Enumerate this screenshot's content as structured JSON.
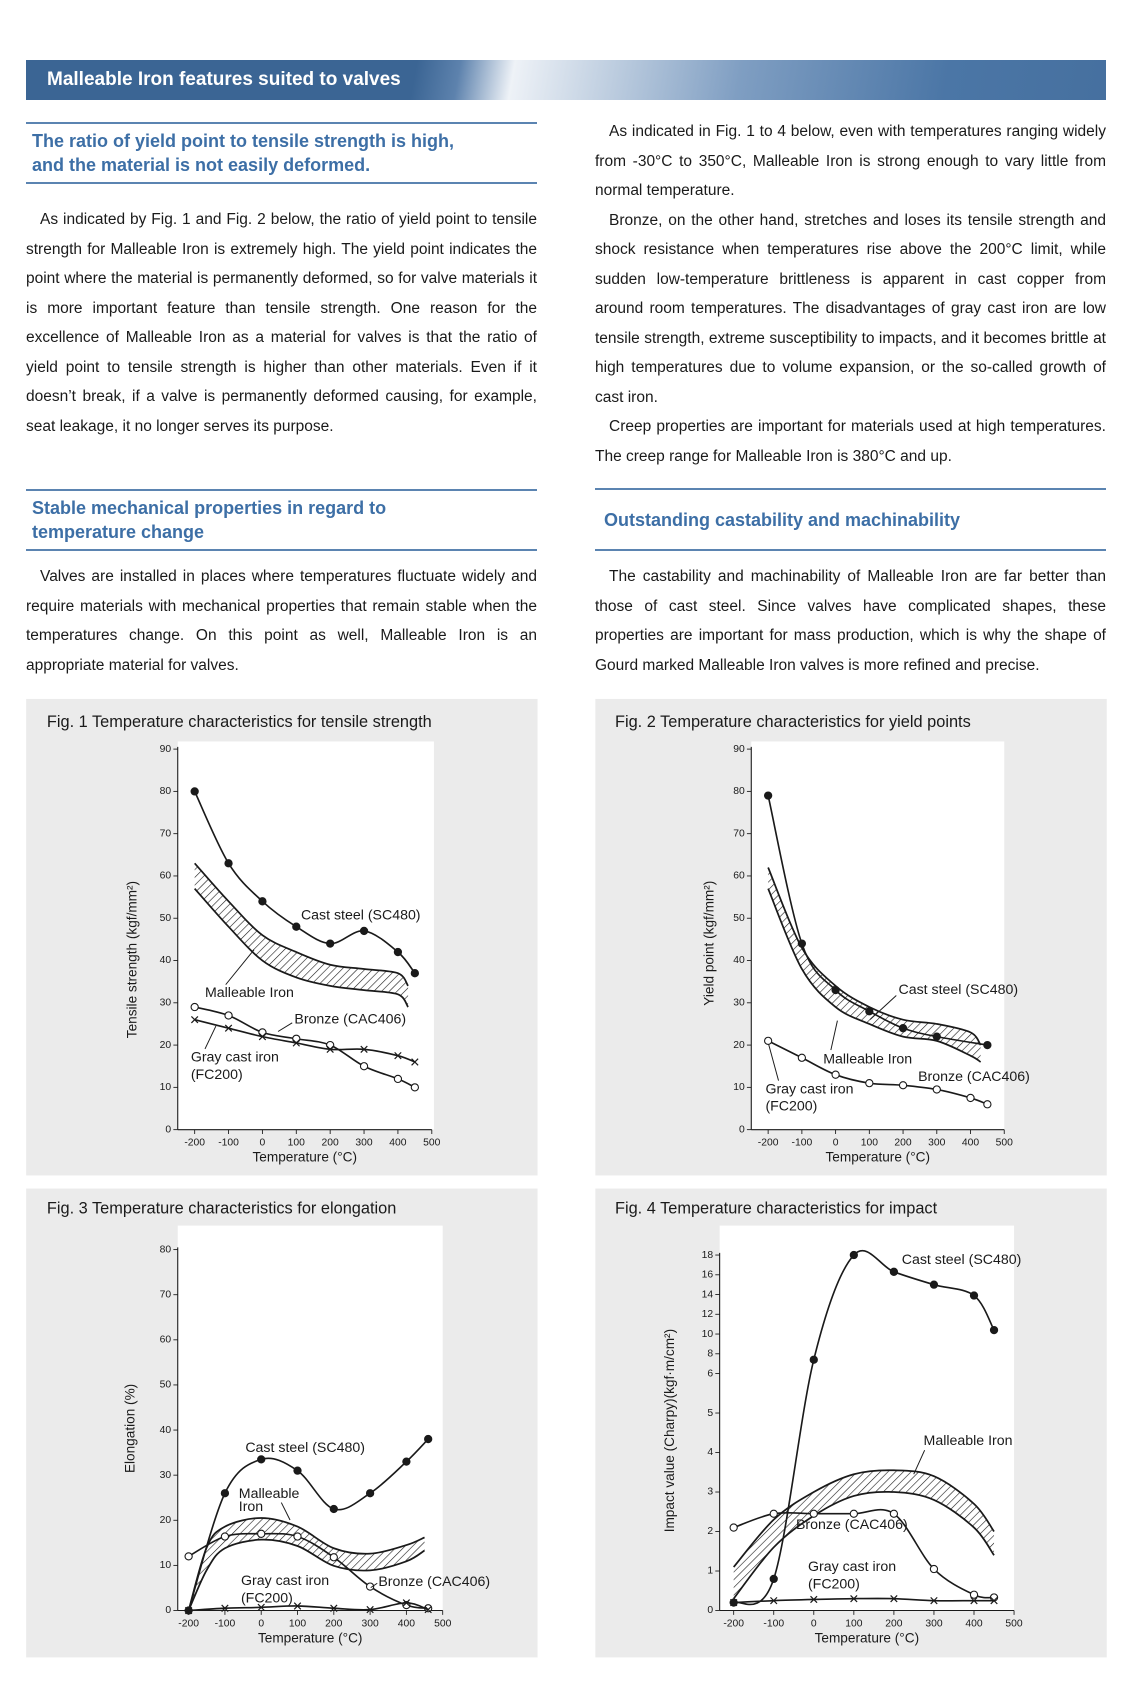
{
  "header": {
    "title": "Malleable Iron features suited to valves"
  },
  "left_column": {
    "sections": [
      {
        "heading": "The ratio of yield point to tensile strength is high, and the material is not easily deformed.",
        "paragraphs": [
          "As indicated by Fig. 1 and Fig. 2 below, the ratio of yield point to tensile strength for Malleable Iron is extremely high. The yield point indicates the point where the material is permanently deformed, so for valve materials it is more important feature than tensile strength. One reason for the excellence of Malleable Iron as a material for valves is that the ratio of yield point to tensile strength is higher than other materials. Even if it doesn’t break, if a valve is permanently deformed causing, for example, seat leakage, it no longer serves its purpose."
        ]
      },
      {
        "heading": "Stable mechanical properties in regard to temperature change",
        "paragraphs": [
          "Valves are installed in places where temperatures fluctuate widely and require materials with mechanical properties that remain stable when the temperatures change. On this point as well, Malleable Iron is an appropriate material for valves."
        ]
      }
    ]
  },
  "right_column": {
    "paragraphs": [
      "As indicated in Fig. 1 to 4 below, even with temperatures ranging widely from -30°C to 350°C, Malleable Iron is strong enough to vary little from normal temperature.",
      "Bronze, on the other hand, stretches and loses its tensile strength and shock resistance when temperatures rise above the 200°C limit, while sudden low-temperature brittleness is apparent in cast copper from around room temperatures. The disadvantages of gray cast iron are low tensile strength, extreme susceptibility to impacts, and it becomes brittle at high temperatures due to volume expansion, or the so-called growth of cast iron.",
      "Creep properties are important for materials used at high temperatures. The creep range for Malleable Iron is 380°C and up."
    ],
    "sections": [
      {
        "heading": "Outstanding castability and machinability",
        "paragraphs": [
          "The castability and machinability of Malleable Iron are far better than those of cast steel. Since valves have complicated shapes, these properties are important for mass production, which is why the shape of Gourd marked Malleable Iron valves is more refined and precise."
        ]
      }
    ]
  },
  "chart_data": [
    {
      "type": "line",
      "title": "Fig. 1 Temperature characteristics for tensile strength",
      "x_label": "Temperature (°C)",
      "y_label": "Tensile strength (kgf/mm²)",
      "xlim": [
        -250,
        500
      ],
      "xticks": [
        -200,
        -100,
        0,
        100,
        200,
        300,
        400,
        500
      ],
      "ylim": [
        0,
        90
      ],
      "yticks": [
        0,
        10,
        20,
        30,
        40,
        50,
        60,
        70,
        80,
        90
      ],
      "color": "#1a1a1a",
      "series": [
        {
          "name": "Cast steel (SC480)",
          "marker": "filled",
          "x": [
            -200,
            -100,
            0,
            100,
            200,
            300,
            400,
            450
          ],
          "values": [
            80,
            63,
            54,
            48,
            44,
            47,
            42,
            37
          ]
        },
        {
          "name": "Malleable Iron",
          "marker": "band",
          "x": [
            -200,
            -100,
            0,
            100,
            200,
            300,
            400,
            430
          ],
          "low": [
            57,
            48,
            40,
            36,
            34,
            33,
            32,
            29
          ],
          "high": [
            63,
            54,
            46,
            42,
            39,
            38,
            37,
            34
          ]
        },
        {
          "name": "Bronze (CAC406)",
          "marker": "open",
          "x": [
            -200,
            -100,
            0,
            100,
            200,
            300,
            400,
            450
          ],
          "values": [
            29,
            27,
            23,
            21.5,
            20,
            15,
            12,
            10
          ]
        },
        {
          "name": "Gray cast iron (FC200)",
          "marker": "cross",
          "x": [
            -200,
            -100,
            0,
            100,
            200,
            300,
            400,
            450
          ],
          "values": [
            26,
            24,
            22,
            20.5,
            19,
            19,
            17.5,
            16
          ]
        }
      ]
    },
    {
      "type": "line",
      "title": "Fig. 2 Temperature characteristics for yield points",
      "x_label": "Temperature (°C)",
      "y_label": "Yield point (kgf/mm²)",
      "xlim": [
        -250,
        500
      ],
      "xticks": [
        -200,
        -100,
        0,
        100,
        200,
        300,
        400,
        500
      ],
      "ylim": [
        0,
        90
      ],
      "yticks": [
        0,
        10,
        20,
        30,
        40,
        50,
        60,
        70,
        80,
        90
      ],
      "color": "#1a1a1a",
      "series": [
        {
          "name": "Cast steel (SC480)",
          "marker": "filled",
          "x": [
            -200,
            -100,
            0,
            100,
            200,
            300,
            450
          ],
          "values": [
            79,
            44,
            33,
            28,
            24,
            22,
            20
          ]
        },
        {
          "name": "Malleable Iron",
          "marker": "band",
          "x": [
            -200,
            -100,
            0,
            100,
            200,
            300,
            400,
            430
          ],
          "low": [
            57,
            38,
            29,
            25,
            22,
            21,
            17.5,
            16
          ],
          "high": [
            62,
            43,
            34,
            29,
            26,
            25,
            23,
            20
          ]
        },
        {
          "name": "Bronze (CAC406)",
          "marker": "open",
          "x": [
            -200,
            -100,
            0,
            100,
            200,
            300,
            400,
            450
          ],
          "values": [
            21,
            17,
            13,
            11,
            10.5,
            9.5,
            7.5,
            6
          ]
        }
      ],
      "annotations": [
        "Gray cast iron (FC200)"
      ]
    },
    {
      "type": "line",
      "title": "Fig. 3 Temperature characteristics for elongation",
      "x_label": "Temperature (°C)",
      "y_label": "Elongation (%)",
      "xlim": [
        -230,
        500
      ],
      "xticks": [
        -200,
        -100,
        0,
        100,
        200,
        300,
        400,
        500
      ],
      "ylim": [
        0,
        80
      ],
      "yticks": [
        0,
        10,
        20,
        30,
        40,
        50,
        60,
        70,
        80
      ],
      "color": "#1a1a1a",
      "series": [
        {
          "name": "Cast steel (SC480)",
          "marker": "filled",
          "x": [
            -200,
            -100,
            0,
            100,
            200,
            300,
            400,
            460
          ],
          "values": [
            0,
            26,
            33.5,
            31,
            22.5,
            26,
            33,
            38
          ]
        },
        {
          "name": "Malleable Iron",
          "marker": "band",
          "x": [
            -200,
            -150,
            -100,
            0,
            100,
            200,
            300,
            400,
            450
          ],
          "low": [
            0,
            9,
            13.8,
            15.7,
            14.3,
            9.9,
            8.9,
            10.9,
            13.3
          ],
          "high": [
            0,
            14,
            18.6,
            20.5,
            18.6,
            13.8,
            12.6,
            14.5,
            16.2
          ]
        },
        {
          "name": "Bronze (CAC406)",
          "marker": "open",
          "x": [
            -200,
            -100,
            0,
            100,
            200,
            300,
            400,
            460
          ],
          "values": [
            12,
            16.4,
            17,
            16.4,
            11.8,
            5.3,
            1.2,
            0.5
          ]
        },
        {
          "name": "Gray cast iron (FC200)",
          "marker": "cross",
          "x": [
            -200,
            -100,
            0,
            100,
            200,
            300,
            400,
            460
          ],
          "values": [
            0,
            0.5,
            0.7,
            1,
            0.5,
            0.2,
            1.7,
            0.2
          ]
        }
      ]
    },
    {
      "type": "line",
      "title": "Fig. 4 Temperature characteristics for impact",
      "x_label": "Temperature (°C)",
      "y_label": "Impact value (Charpy)(kgf·m/cm²)",
      "xlim": [
        -235,
        500
      ],
      "xticks": [
        -200,
        -100,
        0,
        100,
        200,
        300,
        400,
        500
      ],
      "ylim": [
        0,
        18
      ],
      "yticks": [
        0,
        1,
        2,
        3,
        4,
        5,
        6,
        8,
        10,
        12,
        14,
        16,
        18
      ],
      "ybreak": 6,
      "color": "#1a1a1a",
      "series": [
        {
          "name": "Cast steel (SC480)",
          "marker": "filled",
          "x": [
            -200,
            -100,
            0,
            100,
            200,
            300,
            400,
            450
          ],
          "values": [
            0.2,
            0.8,
            7.4,
            18,
            16.3,
            15,
            13.9,
            10.4
          ]
        },
        {
          "name": "Malleable Iron",
          "marker": "band",
          "x": [
            -200,
            -100,
            0,
            100,
            200,
            300,
            400,
            450
          ],
          "low": [
            0.3,
            1.6,
            2.4,
            2.9,
            3,
            2.8,
            2.1,
            1.4
          ],
          "high": [
            1.1,
            2.3,
            3,
            3.45,
            3.55,
            3.4,
            2.7,
            2
          ]
        },
        {
          "name": "Bronze (CAC406)",
          "marker": "open",
          "x": [
            -200,
            -100,
            0,
            100,
            200,
            300,
            400,
            450
          ],
          "values": [
            2.1,
            2.45,
            2.45,
            2.45,
            2.45,
            1.05,
            0.4,
            0.33
          ]
        },
        {
          "name": "Gray cast iron (FC200)",
          "marker": "cross",
          "x": [
            -200,
            -100,
            0,
            100,
            200,
            300,
            400,
            450
          ],
          "values": [
            0.2,
            0.25,
            0.28,
            0.3,
            0.3,
            0.25,
            0.25,
            0.25
          ]
        }
      ]
    }
  ]
}
